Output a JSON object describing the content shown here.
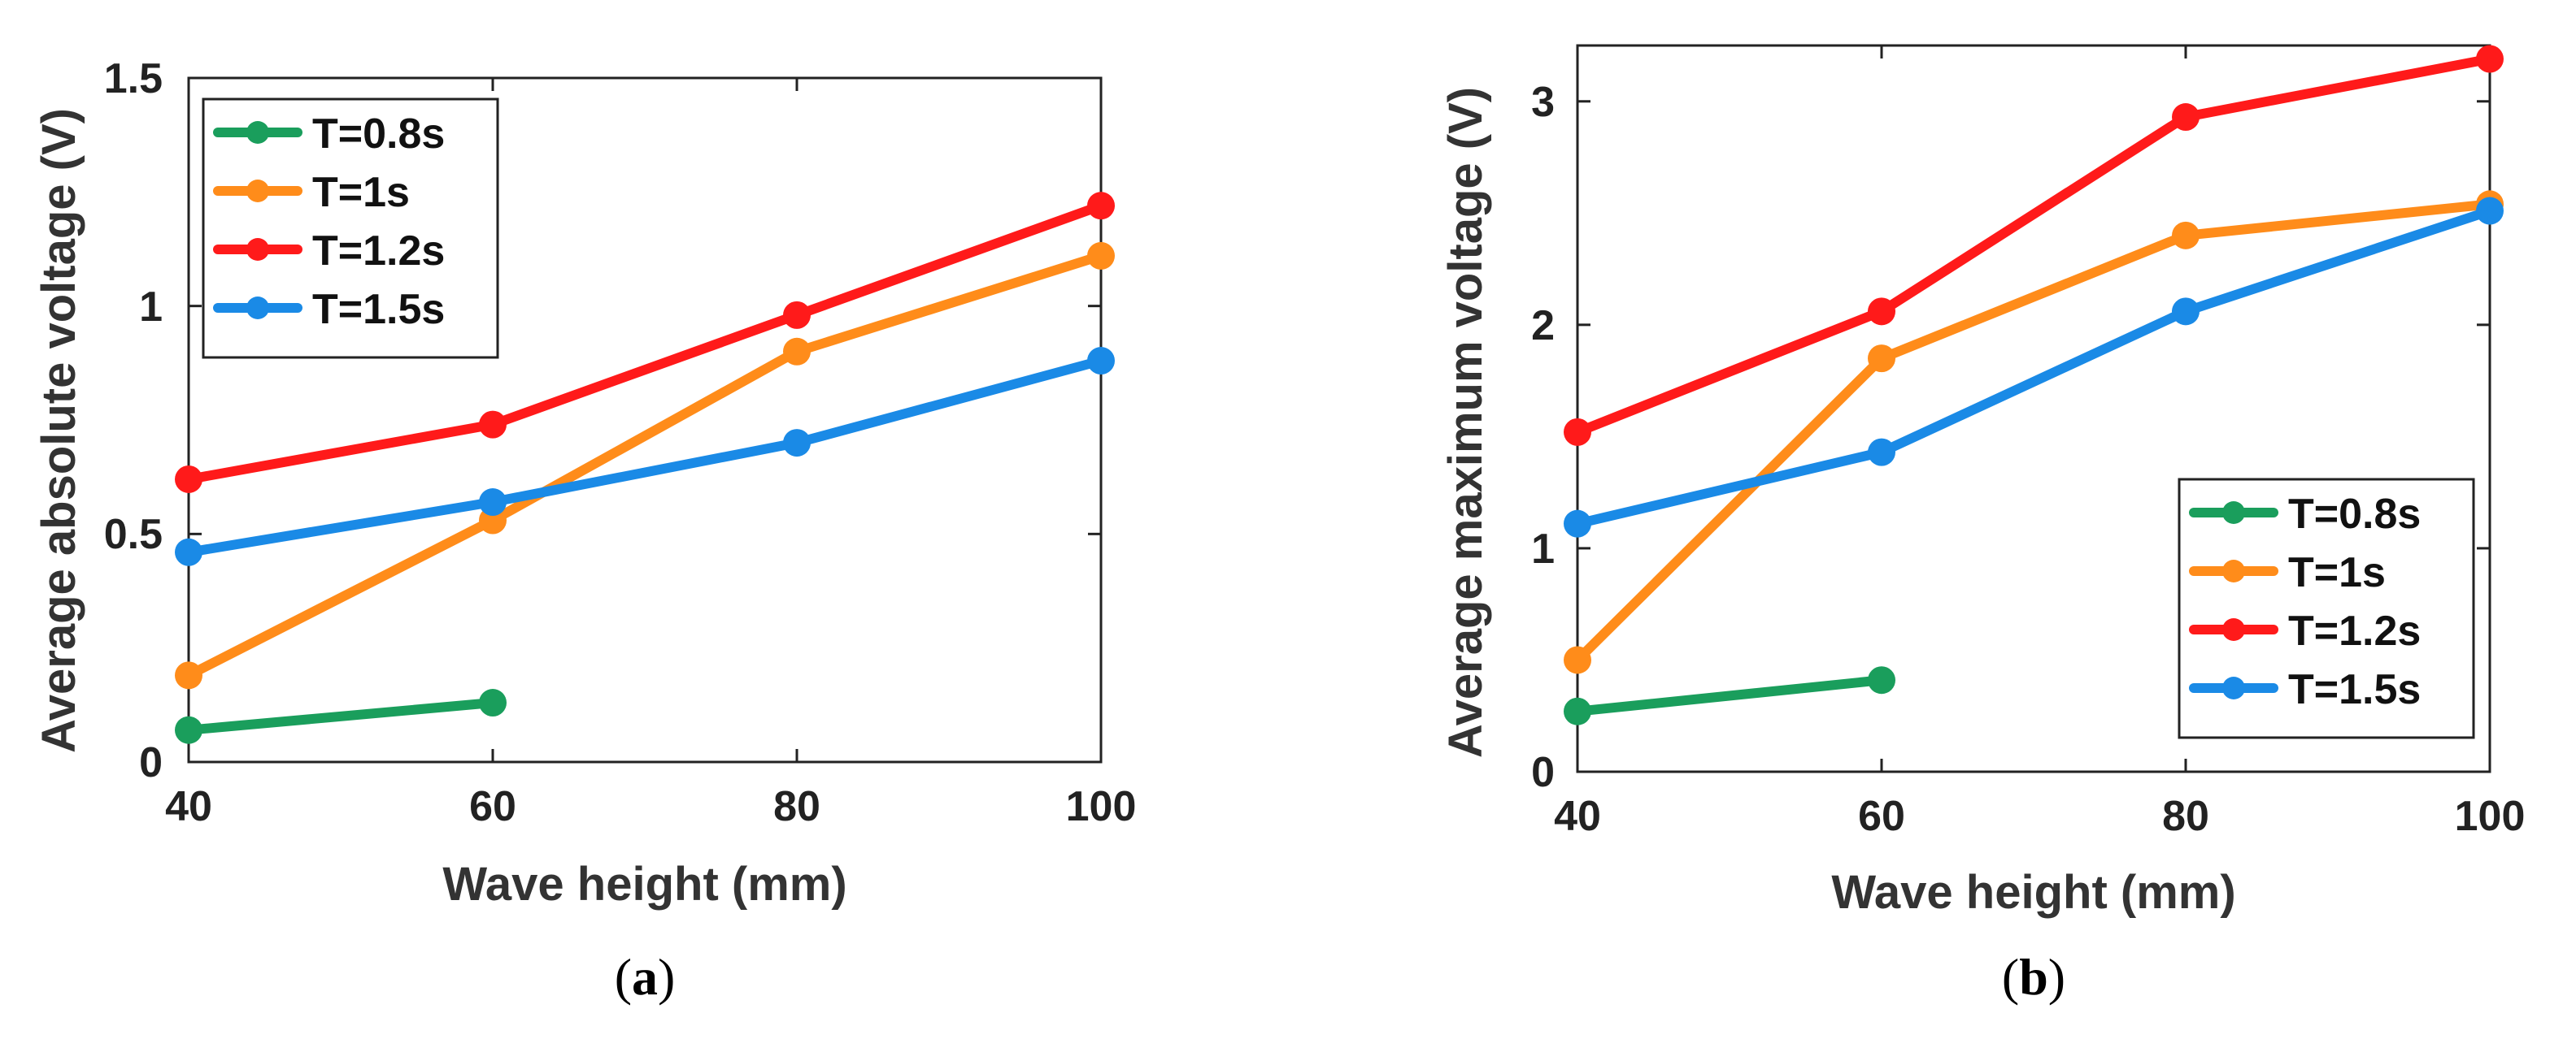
{
  "chart_data": [
    {
      "type": "line",
      "panel_label": "a",
      "xlabel": "Wave height (mm)",
      "ylabel": "Average absolute voltage (V)",
      "xlim": [
        40,
        100
      ],
      "ylim": [
        0,
        1.5
      ],
      "xticks": [
        40,
        60,
        80,
        100
      ],
      "yticks": [
        0,
        0.5,
        1,
        1.5
      ],
      "ytick_labels": [
        "0",
        "0.5",
        "1",
        "1.5"
      ],
      "legend_position": "top-left",
      "series": [
        {
          "name": "T=0.8s",
          "color": "#1a9e5c",
          "x": [
            40,
            60
          ],
          "values": [
            0.07,
            0.13
          ]
        },
        {
          "name": "T=1s",
          "color": "#ff8c1a",
          "x": [
            40,
            60,
            80,
            100
          ],
          "values": [
            0.19,
            0.53,
            0.9,
            1.11
          ]
        },
        {
          "name": "T=1.2s",
          "color": "#ff1a1a",
          "x": [
            40,
            60,
            80,
            100
          ],
          "values": [
            0.62,
            0.74,
            0.98,
            1.22
          ]
        },
        {
          "name": "T=1.5s",
          "color": "#1a8ae6",
          "x": [
            40,
            60,
            80,
            100
          ],
          "values": [
            0.46,
            0.57,
            0.7,
            0.88
          ]
        }
      ]
    },
    {
      "type": "line",
      "panel_label": "b",
      "xlabel": "Wave height (mm)",
      "ylabel": "Average maximum voltage (V)",
      "xlim": [
        40,
        100
      ],
      "ylim": [
        0,
        3.25
      ],
      "xticks": [
        40,
        60,
        80,
        100
      ],
      "yticks": [
        0,
        1,
        2,
        3
      ],
      "ytick_labels": [
        "0",
        "1",
        "2",
        "3"
      ],
      "legend_position": "bottom-right",
      "series": [
        {
          "name": "T=0.8s",
          "color": "#1a9e5c",
          "x": [
            40,
            60
          ],
          "values": [
            0.27,
            0.41
          ]
        },
        {
          "name": "T=1s",
          "color": "#ff8c1a",
          "x": [
            40,
            60,
            80,
            100
          ],
          "values": [
            0.5,
            1.85,
            2.4,
            2.54
          ]
        },
        {
          "name": "T=1.2s",
          "color": "#ff1a1a",
          "x": [
            40,
            60,
            80,
            100
          ],
          "values": [
            1.52,
            2.06,
            2.93,
            3.19
          ]
        },
        {
          "name": "T=1.5s",
          "color": "#1a8ae6",
          "x": [
            40,
            60,
            80,
            100
          ],
          "values": [
            1.11,
            1.43,
            2.06,
            2.51
          ]
        }
      ]
    }
  ]
}
